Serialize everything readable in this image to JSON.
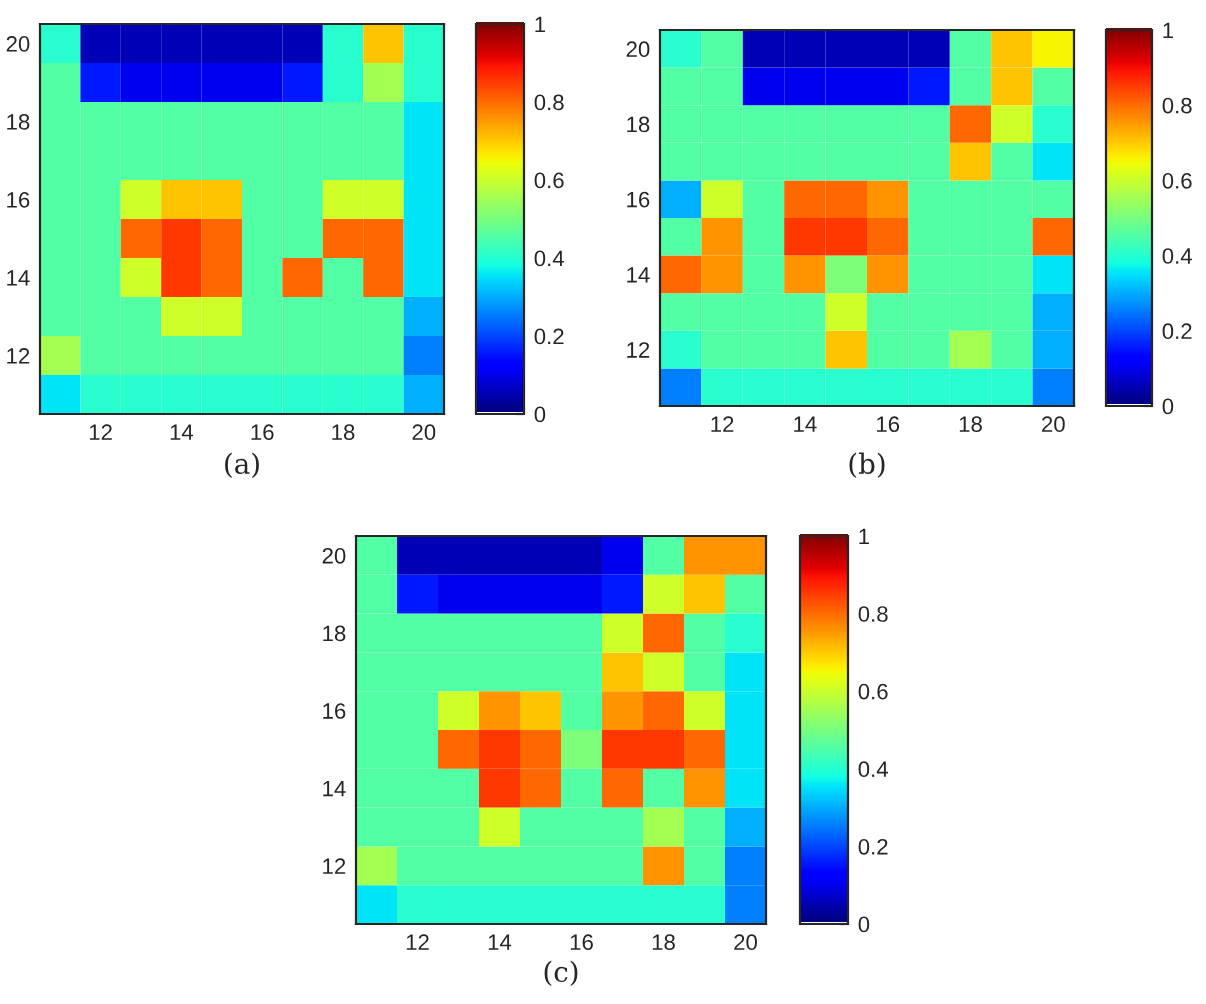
{
  "chart_data": [
    {
      "type": "heatmap",
      "annotations": [
        "(a)"
      ],
      "categories": [
        null,
        "12",
        null,
        "14",
        null,
        "16",
        null,
        "18",
        null,
        "20"
      ],
      "y_categories": [
        "20",
        null,
        "18",
        null,
        "16",
        null,
        "14",
        null,
        "12",
        null
      ],
      "clim": [
        0,
        1
      ],
      "cticks": [
        0,
        0.2,
        0.4,
        0.6,
        0.8,
        1
      ],
      "cells": [
        [
          0.4,
          0.05,
          0.05,
          0.05,
          0.05,
          0.05,
          0.05,
          0.4,
          0.7,
          0.4
        ],
        [
          0.45,
          0.15,
          0.1,
          0.1,
          0.1,
          0.1,
          0.15,
          0.4,
          0.55,
          0.4
        ],
        [
          0.45,
          0.45,
          0.45,
          0.45,
          0.45,
          0.45,
          0.45,
          0.45,
          0.45,
          0.35
        ],
        [
          0.45,
          0.45,
          0.45,
          0.45,
          0.45,
          0.45,
          0.45,
          0.45,
          0.45,
          0.35
        ],
        [
          0.45,
          0.45,
          0.6,
          0.7,
          0.7,
          0.45,
          0.45,
          0.6,
          0.6,
          0.35
        ],
        [
          0.45,
          0.45,
          0.8,
          0.85,
          0.8,
          0.45,
          0.45,
          0.8,
          0.8,
          0.35
        ],
        [
          0.45,
          0.45,
          0.6,
          0.85,
          0.8,
          0.45,
          0.8,
          0.45,
          0.8,
          0.35
        ],
        [
          0.45,
          0.45,
          0.45,
          0.6,
          0.6,
          0.45,
          0.45,
          0.45,
          0.45,
          0.3
        ],
        [
          0.55,
          0.45,
          0.45,
          0.45,
          0.45,
          0.45,
          0.45,
          0.45,
          0.45,
          0.25
        ],
        [
          0.35,
          0.4,
          0.4,
          0.4,
          0.4,
          0.4,
          0.4,
          0.4,
          0.4,
          0.3
        ]
      ]
    },
    {
      "type": "heatmap",
      "annotations": [
        "(b)"
      ],
      "categories": [
        null,
        "12",
        null,
        "14",
        null,
        "16",
        null,
        "18",
        null,
        "20"
      ],
      "y_categories": [
        "20",
        null,
        "18",
        null,
        "16",
        null,
        "14",
        null,
        "12",
        null
      ],
      "clim": [
        0,
        1
      ],
      "cticks": [
        0,
        0.2,
        0.4,
        0.6,
        0.8,
        1
      ],
      "cells": [
        [
          0.4,
          0.45,
          0.05,
          0.05,
          0.05,
          0.05,
          0.05,
          0.45,
          0.7,
          0.65
        ],
        [
          0.45,
          0.45,
          0.1,
          0.1,
          0.1,
          0.1,
          0.15,
          0.45,
          0.7,
          0.45
        ],
        [
          0.45,
          0.45,
          0.45,
          0.45,
          0.45,
          0.45,
          0.45,
          0.8,
          0.6,
          0.4
        ],
        [
          0.45,
          0.45,
          0.45,
          0.45,
          0.45,
          0.45,
          0.45,
          0.7,
          0.45,
          0.35
        ],
        [
          0.3,
          0.6,
          0.45,
          0.8,
          0.8,
          0.75,
          0.45,
          0.45,
          0.45,
          0.45
        ],
        [
          0.45,
          0.75,
          0.45,
          0.85,
          0.85,
          0.8,
          0.45,
          0.45,
          0.45,
          0.8
        ],
        [
          0.8,
          0.75,
          0.45,
          0.75,
          0.5,
          0.75,
          0.45,
          0.45,
          0.45,
          0.35
        ],
        [
          0.45,
          0.45,
          0.45,
          0.45,
          0.6,
          0.45,
          0.45,
          0.45,
          0.45,
          0.3
        ],
        [
          0.4,
          0.45,
          0.45,
          0.45,
          0.7,
          0.45,
          0.45,
          0.55,
          0.45,
          0.3
        ],
        [
          0.25,
          0.4,
          0.4,
          0.4,
          0.4,
          0.4,
          0.4,
          0.4,
          0.4,
          0.25
        ]
      ]
    },
    {
      "type": "heatmap",
      "annotations": [
        "(c)"
      ],
      "categories": [
        null,
        "12",
        null,
        "14",
        null,
        "16",
        null,
        "18",
        null,
        "20"
      ],
      "y_categories": [
        "20",
        null,
        "18",
        null,
        "16",
        null,
        "14",
        null,
        "12",
        null
      ],
      "clim": [
        0,
        1
      ],
      "cticks": [
        0,
        0.2,
        0.4,
        0.6,
        0.8,
        1
      ],
      "cells": [
        [
          0.45,
          0.05,
          0.05,
          0.05,
          0.05,
          0.05,
          0.1,
          0.45,
          0.75,
          0.75
        ],
        [
          0.45,
          0.15,
          0.1,
          0.1,
          0.1,
          0.1,
          0.15,
          0.6,
          0.7,
          0.45
        ],
        [
          0.45,
          0.45,
          0.45,
          0.45,
          0.45,
          0.45,
          0.6,
          0.8,
          0.45,
          0.4
        ],
        [
          0.45,
          0.45,
          0.45,
          0.45,
          0.45,
          0.45,
          0.7,
          0.6,
          0.45,
          0.35
        ],
        [
          0.45,
          0.45,
          0.6,
          0.75,
          0.7,
          0.45,
          0.75,
          0.8,
          0.6,
          0.35
        ],
        [
          0.45,
          0.45,
          0.8,
          0.85,
          0.8,
          0.5,
          0.85,
          0.85,
          0.8,
          0.35
        ],
        [
          0.45,
          0.45,
          0.45,
          0.85,
          0.8,
          0.45,
          0.8,
          0.45,
          0.75,
          0.35
        ],
        [
          0.45,
          0.45,
          0.45,
          0.6,
          0.45,
          0.45,
          0.45,
          0.55,
          0.45,
          0.3
        ],
        [
          0.55,
          0.45,
          0.45,
          0.45,
          0.45,
          0.45,
          0.45,
          0.75,
          0.45,
          0.25
        ],
        [
          0.35,
          0.4,
          0.4,
          0.4,
          0.4,
          0.4,
          0.4,
          0.4,
          0.4,
          0.25
        ]
      ]
    }
  ]
}
